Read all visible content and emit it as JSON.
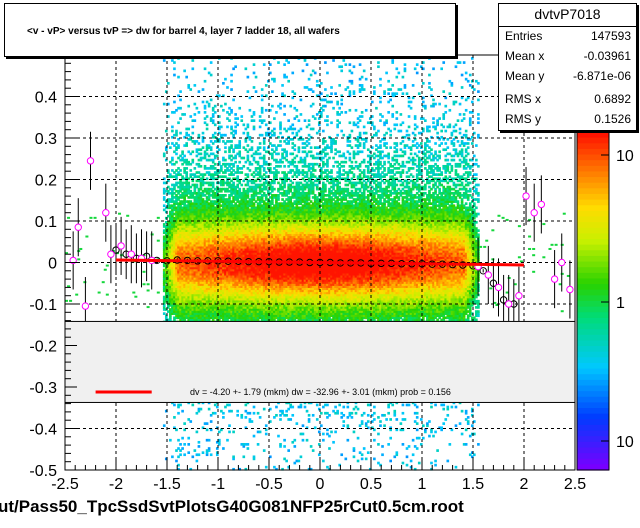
{
  "title": "<v - vP>       versus  tvP =>  dw for barrel 4, layer 7 ladder 18, all wafers",
  "stats": {
    "name": "dvtvP7018",
    "rows": [
      {
        "label": "Entries",
        "value": "147593"
      },
      {
        "label": "Mean x",
        "value": "-0.03961"
      },
      {
        "label": "Mean y",
        "value": "-6.871e-06"
      },
      {
        "label": "RMS x",
        "value": "0.6892"
      },
      {
        "label": "RMS y",
        "value": "0.1526"
      }
    ]
  },
  "fit_text": "dv =   -4.20 +-  1.79 (mkm) dw =  -32.96 +-  3.01 (mkm) prob = 0.156",
  "footer": "ut/Pass50_TpcSsdSvtPlotsG40G081NFP25rCut0.5cm.root",
  "colors": {
    "fit_line": "#ff0000",
    "profile_black": "#000000",
    "profile_magenta": "#ff00ff",
    "palette_low": "#7700ff",
    "palette_mid": "#22cc00",
    "palette_high": "#ff1100"
  },
  "chart_data": {
    "type": "heatmap",
    "title": "<v - vP>       versus  tvP =>  dw for barrel 4, layer 7 ladder 18, all wafers",
    "xlim": [
      -2.5,
      2.5
    ],
    "ylim": [
      -0.5,
      0.5
    ],
    "x_ticks": [
      -2.5,
      -2,
      -1.5,
      -1,
      -0.5,
      0,
      0.5,
      1,
      1.5,
      2,
      2.5
    ],
    "x_tick_labels": [
      "-2.5",
      "-2",
      "-1.5",
      "-1",
      "-0.5",
      "0",
      "0.5",
      "1",
      "1.5",
      "2",
      "2.5"
    ],
    "y_ticks": [
      -0.5,
      -0.4,
      -0.3,
      -0.2,
      -0.1,
      0,
      0.1,
      0.2,
      0.3,
      0.4
    ],
    "y_tick_labels": [
      "-0.5",
      "-0.4",
      "-0.3",
      "-0.2",
      "-0.1",
      "0",
      "0.1",
      "0.2",
      "0.3",
      "0.4"
    ],
    "grid": true,
    "color_scale": "log",
    "colorbar_tick_labels": [
      "10",
      "1",
      "10"
    ],
    "fit": {
      "x": [
        -2.0,
        2.0
      ],
      "y": [
        0.006,
        -0.006
      ]
    },
    "series": [
      {
        "x": [
          -2.0,
          -1.9,
          -1.8,
          -1.7,
          -1.6,
          -1.5,
          -1.4,
          -1.3,
          -1.2,
          -1.1,
          -1.0,
          -0.9,
          -0.8,
          -0.7,
          -0.6,
          -0.5,
          -0.4,
          -0.3,
          -0.2,
          -0.1,
          0.0,
          0.1,
          0.2,
          0.3,
          0.4,
          0.5,
          0.6,
          0.7,
          0.8,
          0.9,
          1.0,
          1.1,
          1.2,
          1.3,
          1.4,
          1.5,
          1.6,
          1.7,
          1.8,
          1.9
        ],
        "y": [
          0.03,
          0.02,
          0.01,
          0.015,
          0.005,
          0.004,
          0.006,
          0.005,
          0.004,
          0.004,
          0.004,
          0.003,
          0.003,
          0.002,
          0.002,
          0.002,
          0.001,
          0.001,
          0.001,
          0.0,
          0.0,
          0.0,
          -0.001,
          -0.001,
          -0.001,
          -0.002,
          -0.002,
          -0.002,
          -0.003,
          -0.003,
          -0.003,
          -0.004,
          -0.004,
          -0.005,
          -0.006,
          -0.008,
          -0.02,
          -0.05,
          -0.09,
          -0.1
        ]
      },
      {
        "x": [
          -2.42,
          -2.37,
          -2.3,
          -2.25,
          -2.1,
          -2.05,
          -1.95,
          -1.85,
          -1.75,
          -1.65,
          1.55,
          1.65,
          1.75,
          1.85,
          1.95,
          2.02,
          2.1,
          2.17,
          2.3,
          2.37,
          2.45
        ],
        "y": [
          0.005,
          0.085,
          -0.105,
          0.245,
          0.12,
          0.02,
          0.04,
          0.02,
          0.01,
          0.005,
          -0.01,
          -0.03,
          -0.06,
          -0.1,
          -0.08,
          0.16,
          0.12,
          0.14,
          -0.04,
          0.0,
          -0.065
        ]
      }
    ]
  }
}
